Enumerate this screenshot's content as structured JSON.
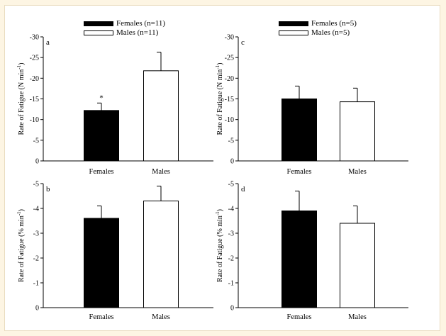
{
  "figure": {
    "background": "#fdf5e3",
    "panel_background": "#ffffff"
  },
  "legends": [
    {
      "entries": [
        {
          "label": "Females (n=11)",
          "fill": "#000000"
        },
        {
          "label": "Males (n=11)",
          "fill": "#ffffff"
        }
      ]
    },
    {
      "entries": [
        {
          "label": "Females (n=5)",
          "fill": "#000000"
        },
        {
          "label": "Males (n=5)",
          "fill": "#ffffff"
        }
      ]
    }
  ],
  "chart_data": [
    {
      "panel": "a",
      "type": "bar",
      "categories": [
        "Females",
        "Males"
      ],
      "values": [
        -12.2,
        -21.8
      ],
      "errors": [
        1.8,
        4.5
      ],
      "annotations": [
        "*",
        ""
      ],
      "ylabel": "Rate of Fatigue (N min",
      "ylabel_sup": "-1",
      "ylabel_end": ")",
      "ylim": [
        0,
        -30
      ],
      "yticks": [
        0,
        -5,
        -10,
        -15,
        -20,
        -25,
        -30
      ],
      "ytick_labels": [
        "0",
        "-5",
        "-10",
        "-15",
        "-20",
        "-25",
        "-30"
      ],
      "colors": [
        "#000000",
        "#ffffff"
      ]
    },
    {
      "panel": "b",
      "type": "bar",
      "categories": [
        "Females",
        "Males"
      ],
      "values": [
        -3.6,
        -4.3
      ],
      "errors": [
        0.5,
        0.6
      ],
      "annotations": [
        "",
        ""
      ],
      "ylabel": "Rate of Fatigue (% min",
      "ylabel_sup": "-1",
      "ylabel_end": ")",
      "ylim": [
        0,
        -5
      ],
      "yticks": [
        0,
        -1,
        -2,
        -3,
        -4,
        -5
      ],
      "ytick_labels": [
        "0",
        "-1",
        "-2",
        "-3",
        "-4",
        "-5"
      ],
      "colors": [
        "#000000",
        "#ffffff"
      ]
    },
    {
      "panel": "c",
      "type": "bar",
      "categories": [
        "Females",
        "Males"
      ],
      "values": [
        -15.0,
        -14.3
      ],
      "errors": [
        3.1,
        3.3
      ],
      "annotations": [
        "",
        ""
      ],
      "ylabel": "Rate of Fatigue (N min",
      "ylabel_sup": "-1",
      "ylabel_end": ")",
      "ylim": [
        0,
        -30
      ],
      "yticks": [
        0,
        -5,
        -10,
        -15,
        -20,
        -25,
        -30
      ],
      "ytick_labels": [
        "0",
        "-5",
        "-10",
        "-15",
        "-20",
        "-25",
        "-30"
      ],
      "colors": [
        "#000000",
        "#ffffff"
      ]
    },
    {
      "panel": "d",
      "type": "bar",
      "categories": [
        "Females",
        "Males"
      ],
      "values": [
        -3.9,
        -3.4
      ],
      "errors": [
        0.8,
        0.7
      ],
      "annotations": [
        "",
        ""
      ],
      "ylabel": "Rate of Fatigue (% min",
      "ylabel_sup": "-1",
      "ylabel_end": ")",
      "ylim": [
        0,
        -5
      ],
      "yticks": [
        0,
        -1,
        -2,
        -3,
        -4,
        -5
      ],
      "ytick_labels": [
        "0",
        "-1",
        "-2",
        "-3",
        "-4",
        "-5"
      ],
      "colors": [
        "#000000",
        "#ffffff"
      ]
    }
  ]
}
